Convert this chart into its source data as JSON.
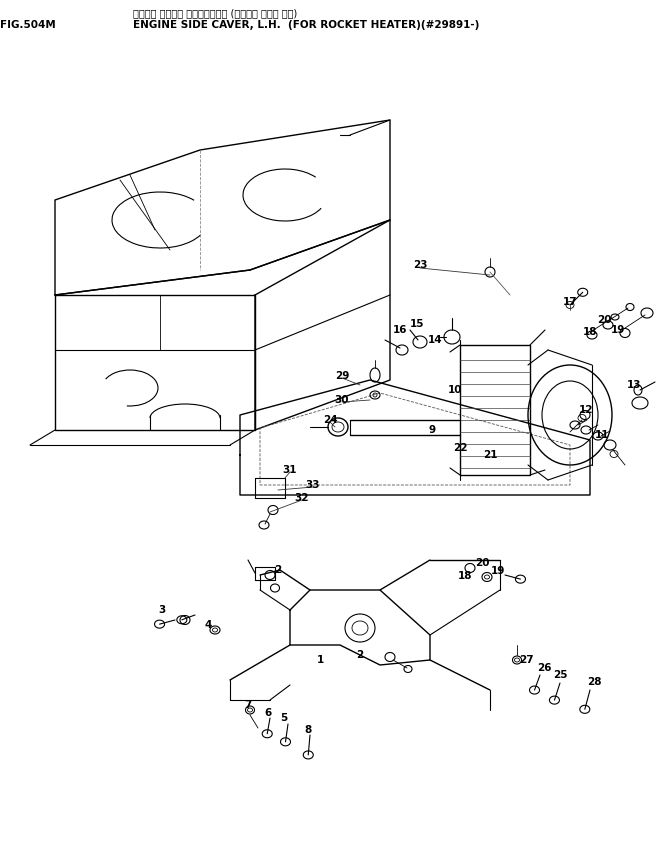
{
  "title_line1": "エンジン サイドア カバー、ヒダリ (ロケット ヒータ ヨウ)",
  "title_line2": "ENGINE SIDE CAVER, L.H.  (FOR ROCKET HEATER)(#29891-)",
  "fig_label": "FIG.504M",
  "bg": "#ffffff",
  "lc": "#000000",
  "part_labels_upper": [
    [
      "23",
      420,
      265
    ],
    [
      "17",
      570,
      302
    ],
    [
      "15",
      417,
      324
    ],
    [
      "16",
      400,
      330
    ],
    [
      "14",
      435,
      340
    ],
    [
      "18",
      590,
      332
    ],
    [
      "20",
      604,
      320
    ],
    [
      "19",
      618,
      330
    ],
    [
      "13",
      634,
      385
    ],
    [
      "12",
      586,
      410
    ],
    [
      "11",
      602,
      435
    ],
    [
      "10",
      455,
      390
    ],
    [
      "9",
      432,
      430
    ],
    [
      "22",
      460,
      448
    ],
    [
      "21",
      490,
      455
    ],
    [
      "29",
      342,
      376
    ],
    [
      "30",
      342,
      400
    ],
    [
      "24",
      330,
      420
    ],
    [
      "31",
      290,
      470
    ],
    [
      "33",
      313,
      485
    ],
    [
      "32",
      302,
      498
    ]
  ],
  "part_labels_lower": [
    [
      "2",
      278,
      570
    ],
    [
      "18",
      465,
      576
    ],
    [
      "20",
      482,
      563
    ],
    [
      "19",
      498,
      571
    ],
    [
      "3",
      162,
      610
    ],
    [
      "4",
      208,
      625
    ],
    [
      "1",
      320,
      660
    ],
    [
      "2",
      360,
      655
    ],
    [
      "27",
      526,
      660
    ],
    [
      "26",
      544,
      668
    ],
    [
      "25",
      560,
      675
    ],
    [
      "28",
      594,
      682
    ],
    [
      "7",
      248,
      705
    ],
    [
      "6",
      268,
      713
    ],
    [
      "5",
      284,
      718
    ],
    [
      "8",
      308,
      730
    ]
  ]
}
